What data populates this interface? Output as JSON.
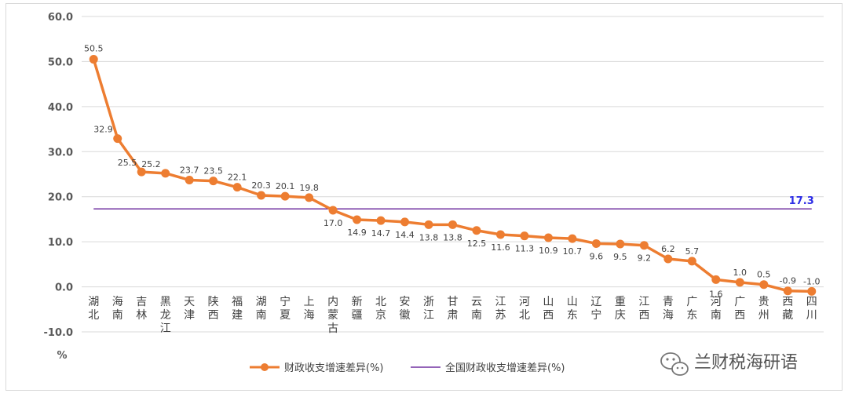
{
  "chart_data": {
    "type": "line",
    "ylabel": "%",
    "ylim": [
      -10,
      60
    ],
    "yticks": [
      "60.0",
      "50.0",
      "40.0",
      "30.0",
      "20.0",
      "10.0",
      "0.0",
      "-10.0"
    ],
    "ytick_values": [
      60,
      50,
      40,
      30,
      20,
      10,
      0,
      -10
    ],
    "grid": "horizontal",
    "legend_position": "bottom",
    "categories": [
      "湖北",
      "海南",
      "吉林",
      "黑龙江",
      "天津",
      "陕西",
      "福建",
      "湖南",
      "宁夏",
      "上海",
      "内蒙古",
      "新疆",
      "北京",
      "安徽",
      "浙江",
      "甘肃",
      "云南",
      "江苏",
      "河北",
      "山西",
      "山东",
      "辽宁",
      "重庆",
      "江西",
      "青海",
      "广东",
      "河南",
      "广西",
      "贵州",
      "西藏",
      "四川"
    ],
    "series": [
      {
        "name": "财政收支增速差异(%)",
        "color": "#ED7D31",
        "values": [
          50.5,
          32.9,
          25.5,
          25.2,
          23.7,
          23.5,
          22.1,
          20.3,
          20.1,
          19.8,
          17.0,
          14.9,
          14.7,
          14.4,
          13.8,
          13.8,
          12.5,
          11.6,
          11.3,
          10.9,
          10.7,
          9.6,
          9.5,
          9.2,
          6.2,
          5.7,
          1.6,
          1.0,
          0.5,
          -0.9,
          -1.0
        ],
        "labels": [
          "50.5",
          "32.9",
          "25.5",
          "25.2",
          "23.7",
          "23.5",
          "22.1",
          "20.3",
          "20.1",
          "19.8",
          "17.0",
          "14.9",
          "14.7",
          "14.4",
          "13.8",
          "13.8",
          "12.5",
          "11.6",
          "11.3",
          "10.9",
          "10.7",
          "9.6",
          "9.5",
          "9.2",
          "6.2",
          "5.7",
          "1.6",
          "1.0",
          "0.5",
          "-0.9",
          "-1.0"
        ]
      },
      {
        "name": "全国财政收支增速差异(%)",
        "color": "#7030A0",
        "value": 17.3,
        "label": "17.3",
        "label_color": "#2E2EE6"
      }
    ],
    "negative_label_color": "#FF0000"
  },
  "watermark": {
    "text": "兰财税海研语",
    "icon": "wechat-icon"
  }
}
